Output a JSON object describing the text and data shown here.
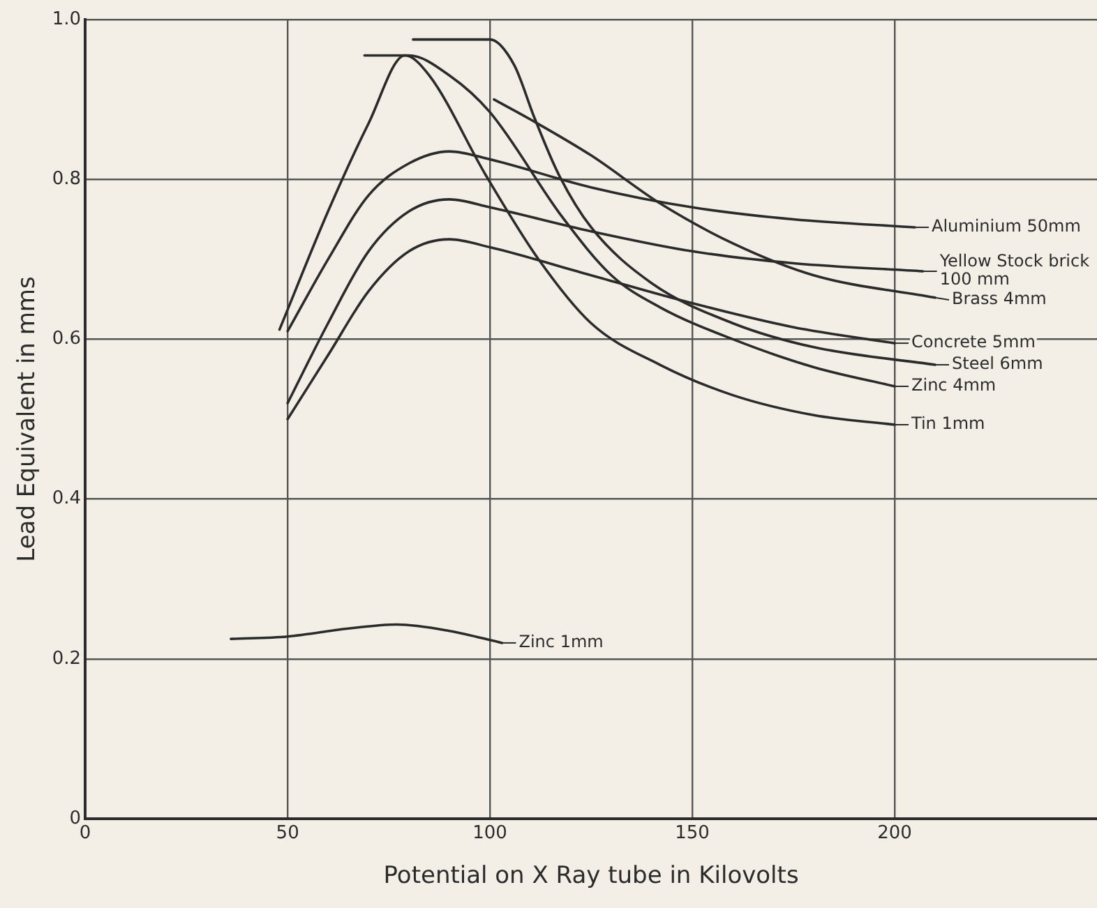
{
  "chart_data": {
    "type": "line",
    "xlabel": "Potential on X Ray tube in Kilovolts",
    "ylabel": "Lead Equivalent in mms",
    "xlim": [
      0,
      250
    ],
    "ylim": [
      0,
      1
    ],
    "xticks": [
      0,
      50,
      100,
      150,
      200
    ],
    "yticks": [
      0,
      0.2,
      0.4,
      0.6,
      0.8,
      {
        "value": 1,
        "label": "1.0"
      }
    ],
    "grid": true,
    "legend": "right",
    "marker": "none",
    "line_style": "solid",
    "series": [
      {
        "name": "Aluminium 50mm",
        "color": "#2b2b2b",
        "x": [
          50,
          60,
          70,
          80,
          90,
          100,
          125,
          150,
          175,
          205
        ],
        "values": [
          0.61,
          0.7,
          0.78,
          0.82,
          0.835,
          0.825,
          0.79,
          0.765,
          0.75,
          0.74
        ]
      },
      {
        "name": "Yellow Stock brick 100 mm",
        "color": "#2b2b2b",
        "x": [
          50,
          60,
          70,
          80,
          90,
          100,
          125,
          150,
          175,
          207
        ],
        "values": [
          0.52,
          0.62,
          0.71,
          0.76,
          0.775,
          0.765,
          0.735,
          0.71,
          0.695,
          0.685
        ]
      },
      {
        "name": "Brass 4mm",
        "color": "#2b2b2b",
        "x": [
          101,
          110,
          125,
          142,
          160,
          180,
          210
        ],
        "values": [
          0.9,
          0.875,
          0.83,
          0.77,
          0.72,
          0.68,
          0.652
        ]
      },
      {
        "name": "Concrete 5mm",
        "color": "#2b2b2b",
        "x": [
          50,
          60,
          70,
          80,
          90,
          100,
          125,
          150,
          175,
          200
        ],
        "values": [
          0.5,
          0.58,
          0.66,
          0.71,
          0.725,
          0.715,
          0.68,
          0.645,
          0.615,
          0.595
        ]
      },
      {
        "name": "Steel 6mm",
        "color": "#2b2b2b",
        "x": [
          81,
          100,
          106,
          111,
          117,
          125,
          140,
          160,
          180,
          210
        ],
        "values": [
          0.975,
          0.975,
          0.943,
          0.877,
          0.806,
          0.74,
          0.67,
          0.62,
          0.59,
          0.568
        ]
      },
      {
        "name": "Zinc 4mm",
        "color": "#2b2b2b",
        "x": [
          69,
          80,
          90,
          100,
          118,
          130,
          142,
          160,
          180,
          200
        ],
        "values": [
          0.955,
          0.955,
          0.93,
          0.884,
          0.752,
          0.68,
          0.64,
          0.6,
          0.565,
          0.541
        ]
      },
      {
        "name": "Tin 1mm",
        "color": "#2b2b2b",
        "x": [
          48,
          60,
          70,
          79,
          85,
          99,
          112,
          125,
          142,
          160,
          180,
          200
        ],
        "values": [
          0.612,
          0.76,
          0.87,
          0.955,
          0.93,
          0.805,
          0.7,
          0.62,
          0.568,
          0.53,
          0.505,
          0.493
        ]
      },
      {
        "name": "Zinc 1mm",
        "color": "#2b2b2b",
        "x": [
          36,
          50,
          65,
          77,
          90,
          103
        ],
        "values": [
          0.225,
          0.228,
          0.238,
          0.243,
          0.235,
          0.22
        ]
      }
    ]
  }
}
